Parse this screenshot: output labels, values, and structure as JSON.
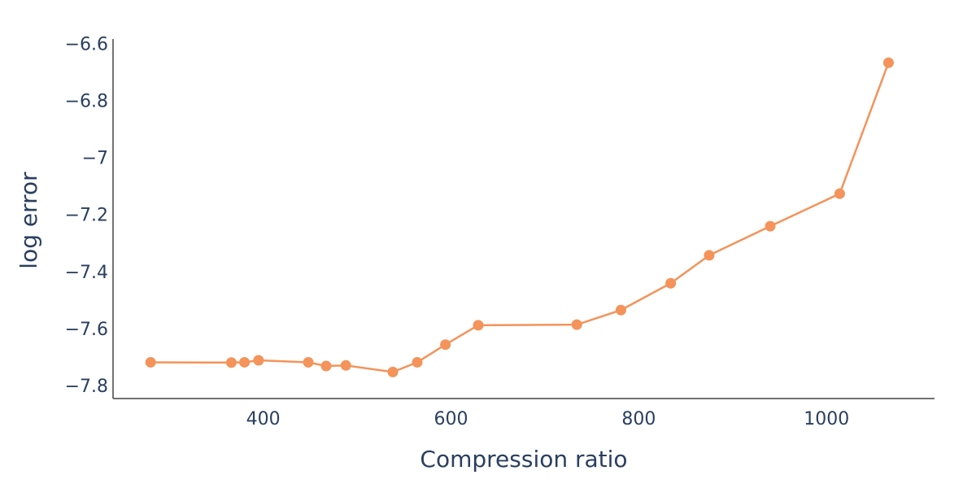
{
  "chart_data": {
    "type": "line",
    "title": "",
    "xlabel": "Compression ratio",
    "ylabel": "log error",
    "xlim": [
      240,
      1115
    ],
    "ylim": [
      -7.845,
      -6.585
    ],
    "grid": false,
    "x_ticks": [
      400,
      600,
      800,
      1000
    ],
    "x_tick_labels": [
      "400",
      "600",
      "800",
      "1000"
    ],
    "y_ticks": [
      -6.6,
      -6.8,
      -7.0,
      -7.2,
      -7.4,
      -7.6,
      -7.8
    ],
    "y_tick_labels": [
      "−6.6",
      "−6.8",
      "−7",
      "−7.2",
      "−7.4",
      "−7.6",
      "−7.8"
    ],
    "series": [
      {
        "color": "#f4935a",
        "marker": "circle",
        "x": [
          280,
          366,
          380,
          395,
          448,
          467,
          488,
          538,
          564,
          594,
          629,
          734,
          781,
          834,
          875,
          940,
          1014,
          1066
        ],
        "y": [
          -7.718,
          -7.719,
          -7.718,
          -7.711,
          -7.718,
          -7.731,
          -7.729,
          -7.752,
          -7.718,
          -7.656,
          -7.588,
          -7.586,
          -7.535,
          -7.441,
          -7.343,
          -7.241,
          -7.127,
          -6.668
        ]
      }
    ]
  }
}
